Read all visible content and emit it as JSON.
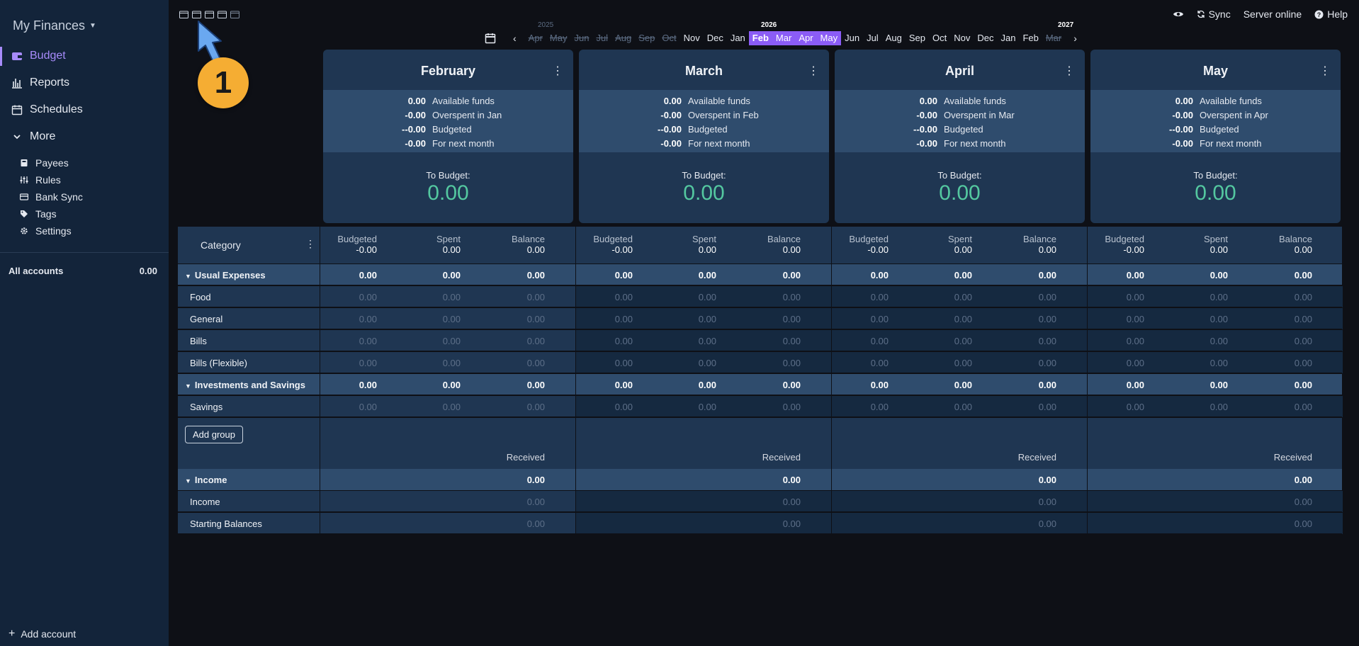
{
  "app": {
    "title": "My Finances"
  },
  "sidebar": {
    "nav": [
      {
        "label": "Budget",
        "icon": "wallet-icon"
      },
      {
        "label": "Reports",
        "icon": "bar-chart-icon"
      },
      {
        "label": "Schedules",
        "icon": "calendar-icon"
      },
      {
        "label": "More",
        "icon": "chevron-down-icon"
      }
    ],
    "sub": [
      {
        "label": "Payees",
        "icon": "payee-icon"
      },
      {
        "label": "Rules",
        "icon": "sliders-icon"
      },
      {
        "label": "Bank Sync",
        "icon": "credit-card-icon"
      },
      {
        "label": "Tags",
        "icon": "tag-icon"
      },
      {
        "label": "Settings",
        "icon": "gear-icon"
      }
    ],
    "all_accounts_label": "All accounts",
    "all_accounts_value": "0.00",
    "add_account": "Add account"
  },
  "topbar": {
    "sync": "Sync",
    "server": "Server online",
    "help": "Help"
  },
  "annotation": {
    "number": "1"
  },
  "month_strip": {
    "years": [
      "2025",
      "2026",
      "2027"
    ],
    "months": [
      {
        "label": "Apr",
        "state": "past"
      },
      {
        "label": "May",
        "state": "past"
      },
      {
        "label": "Jun",
        "state": "past"
      },
      {
        "label": "Jul",
        "state": "past"
      },
      {
        "label": "Aug",
        "state": "past"
      },
      {
        "label": "Sep",
        "state": "past"
      },
      {
        "label": "Oct",
        "state": "past"
      },
      {
        "label": "Nov",
        "state": "normal"
      },
      {
        "label": "Dec",
        "state": "normal"
      },
      {
        "label": "Jan",
        "state": "normal"
      },
      {
        "label": "Feb",
        "state": "selected"
      },
      {
        "label": "Mar",
        "state": "selected"
      },
      {
        "label": "Apr",
        "state": "selected"
      },
      {
        "label": "May",
        "state": "selected"
      },
      {
        "label": "Jun",
        "state": "normal"
      },
      {
        "label": "Jul",
        "state": "normal"
      },
      {
        "label": "Aug",
        "state": "normal"
      },
      {
        "label": "Sep",
        "state": "normal"
      },
      {
        "label": "Oct",
        "state": "normal"
      },
      {
        "label": "Nov",
        "state": "normal"
      },
      {
        "label": "Dec",
        "state": "normal"
      },
      {
        "label": "Jan",
        "state": "normal"
      },
      {
        "label": "Feb",
        "state": "normal"
      },
      {
        "label": "Mar",
        "state": "past"
      }
    ]
  },
  "months": [
    {
      "name": "February",
      "available": "0.00",
      "overspent_val": "-0.00",
      "overspent_label": "Overspent in Jan",
      "budgeted_val": "--0.00",
      "next_val": "-0.00",
      "to_budget": "0.00"
    },
    {
      "name": "March",
      "available": "0.00",
      "overspent_val": "-0.00",
      "overspent_label": "Overspent in Feb",
      "budgeted_val": "--0.00",
      "next_val": "-0.00",
      "to_budget": "0.00"
    },
    {
      "name": "April",
      "available": "0.00",
      "overspent_val": "-0.00",
      "overspent_label": "Overspent in Mar",
      "budgeted_val": "--0.00",
      "next_val": "-0.00",
      "to_budget": "0.00"
    },
    {
      "name": "May",
      "available": "0.00",
      "overspent_val": "-0.00",
      "overspent_label": "Overspent in Apr",
      "budgeted_val": "--0.00",
      "next_val": "-0.00",
      "to_budget": "0.00"
    }
  ],
  "summary_labels": {
    "available": "Available funds",
    "budgeted": "Budgeted",
    "next": "For next month",
    "to_budget": "To Budget:"
  },
  "table": {
    "category_header": "Category",
    "col_headers": [
      "Budgeted",
      "Spent",
      "Balance"
    ],
    "header_totals": [
      "-0.00",
      "0.00",
      "0.00"
    ],
    "expense_rows": [
      {
        "name": "Usual Expenses",
        "group": true
      },
      {
        "name": "Food",
        "group": false
      },
      {
        "name": "General",
        "group": false
      },
      {
        "name": "Bills",
        "group": false
      },
      {
        "name": "Bills (Flexible)",
        "group": false
      },
      {
        "name": "Investments and Savings",
        "group": true
      },
      {
        "name": "Savings",
        "group": false
      }
    ],
    "zero": "0.00",
    "add_group": "Add group",
    "received_label": "Received",
    "income_rows": [
      {
        "name": "Income",
        "group": true
      },
      {
        "name": "Income",
        "group": false
      },
      {
        "name": "Starting Balances",
        "group": false
      }
    ]
  }
}
